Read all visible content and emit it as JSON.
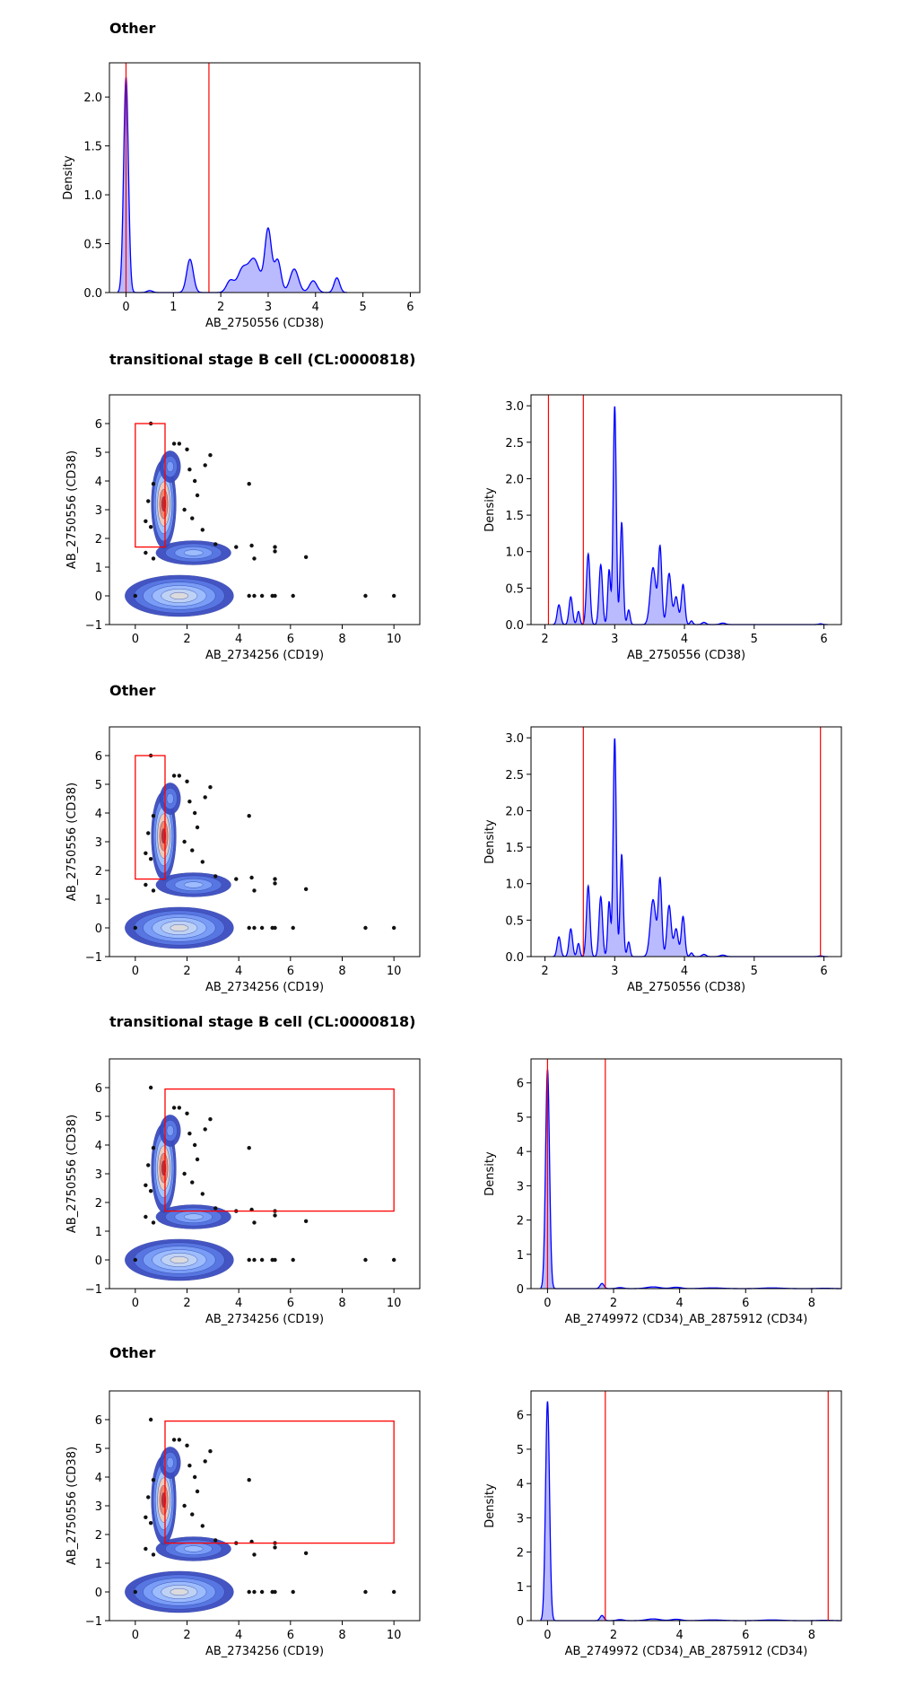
{
  "sections": [
    {
      "title": "Other"
    },
    {
      "title": "transitional stage B cell (CL:0000818)"
    },
    {
      "title": "Other"
    },
    {
      "title": "transitional stage B cell (CL:0000818)"
    },
    {
      "title": "Other"
    }
  ],
  "colors": {
    "density_line": "#0000ff",
    "density_fill": "#b3b3ff",
    "gate": "#ff0000",
    "scatter_point": "#111111"
  },
  "chart_data": [
    {
      "id": "s1-density",
      "type": "area",
      "xlabel": "AB_2750556 (CD38)",
      "ylabel": "Density",
      "xlim": [
        -0.35,
        6.2
      ],
      "ylim": [
        0,
        2.35
      ],
      "xticks": [
        0,
        1,
        2,
        3,
        4,
        5,
        6
      ],
      "yticks": [
        0.0,
        0.5,
        1.0,
        1.5,
        2.0
      ],
      "ytick_labels": [
        "0.0",
        "0.5",
        "1.0",
        "1.5",
        "2.0"
      ],
      "gates": [
        0,
        1.75
      ],
      "peaks": [
        [
          0,
          2.2,
          0.05
        ],
        [
          0.5,
          0.02,
          0.06
        ],
        [
          1.35,
          0.34,
          0.07
        ],
        [
          2.2,
          0.12,
          0.08
        ],
        [
          2.45,
          0.22,
          0.1
        ],
        [
          2.7,
          0.34,
          0.12
        ],
        [
          3.0,
          0.64,
          0.07
        ],
        [
          3.2,
          0.33,
          0.07
        ],
        [
          3.55,
          0.24,
          0.09
        ],
        [
          3.95,
          0.12,
          0.08
        ],
        [
          4.45,
          0.15,
          0.06
        ]
      ]
    },
    {
      "id": "s2-scatter",
      "type": "scatter",
      "xlabel": "AB_2734256 (CD19)",
      "ylabel": "AB_2750556 (CD38)",
      "xlim": [
        -1,
        11
      ],
      "ylim": [
        -1,
        7
      ],
      "xticks": [
        0,
        2,
        4,
        6,
        8,
        10
      ],
      "yticks": [
        -1,
        0,
        1,
        2,
        3,
        4,
        5,
        6
      ],
      "gate": {
        "x": [
          0,
          1.15
        ],
        "y": [
          1.7,
          6.0
        ]
      },
      "outliers": [
        [
          0,
          0
        ],
        [
          8.9,
          0
        ],
        [
          10,
          0
        ],
        [
          6.1,
          0
        ],
        [
          5.4,
          0
        ],
        [
          5.3,
          0
        ],
        [
          4.9,
          0
        ],
        [
          4.6,
          0
        ],
        [
          4.4,
          0
        ],
        [
          6.6,
          1.35
        ],
        [
          5.4,
          1.7
        ],
        [
          5.4,
          1.55
        ],
        [
          4.5,
          1.75
        ],
        [
          4.6,
          1.3
        ],
        [
          4.4,
          3.9
        ],
        [
          2.9,
          4.9
        ],
        [
          2.7,
          4.55
        ],
        [
          2.1,
          4.4
        ],
        [
          2.0,
          5.1
        ],
        [
          1.7,
          5.3
        ],
        [
          1.5,
          5.3
        ],
        [
          0.6,
          6.0
        ],
        [
          2.3,
          4.0
        ],
        [
          2.4,
          3.5
        ],
        [
          1.9,
          3.0
        ],
        [
          2.2,
          2.7
        ],
        [
          2.6,
          2.3
        ],
        [
          0.7,
          3.9
        ],
        [
          0.5,
          3.3
        ],
        [
          0.4,
          2.6
        ],
        [
          0.6,
          2.4
        ],
        [
          0.4,
          1.5
        ],
        [
          0.7,
          1.3
        ],
        [
          3.1,
          1.8
        ],
        [
          3.9,
          1.7
        ]
      ]
    },
    {
      "id": "s2-density",
      "type": "area",
      "xlabel": "AB_2750556 (CD38)",
      "ylabel": "Density",
      "xlim": [
        1.8,
        6.25
      ],
      "ylim": [
        0,
        3.15
      ],
      "xticks": [
        2,
        3,
        4,
        5,
        6
      ],
      "yticks": [
        0.0,
        0.5,
        1.0,
        1.5,
        2.0,
        2.5,
        3.0
      ],
      "ytick_labels": [
        "0.0",
        "0.5",
        "1.0",
        "1.5",
        "2.0",
        "2.5",
        "3.0"
      ],
      "gates": [
        2.05,
        2.55
      ],
      "peaks": [
        [
          2.2,
          0.27,
          0.025
        ],
        [
          2.37,
          0.38,
          0.025
        ],
        [
          2.48,
          0.18,
          0.02
        ],
        [
          2.62,
          0.97,
          0.025
        ],
        [
          2.8,
          0.82,
          0.025
        ],
        [
          2.92,
          0.75,
          0.02
        ],
        [
          3.0,
          3.0,
          0.022
        ],
        [
          3.1,
          1.4,
          0.022
        ],
        [
          3.2,
          0.2,
          0.02
        ],
        [
          3.55,
          0.78,
          0.04
        ],
        [
          3.65,
          1.05,
          0.025
        ],
        [
          3.78,
          0.7,
          0.03
        ],
        [
          3.88,
          0.38,
          0.03
        ],
        [
          3.98,
          0.55,
          0.025
        ],
        [
          4.1,
          0.05,
          0.02
        ],
        [
          4.28,
          0.03,
          0.03
        ],
        [
          4.55,
          0.02,
          0.04
        ],
        [
          5.95,
          0.01,
          0.03
        ]
      ]
    },
    {
      "id": "s3-scatter",
      "type": "scatter",
      "xlabel": "AB_2734256 (CD19)",
      "ylabel": "AB_2750556 (CD38)",
      "xlim": [
        -1,
        11
      ],
      "ylim": [
        -1,
        7
      ],
      "xticks": [
        0,
        2,
        4,
        6,
        8,
        10
      ],
      "yticks": [
        -1,
        0,
        1,
        2,
        3,
        4,
        5,
        6
      ],
      "gate": {
        "x": [
          0,
          1.15
        ],
        "y": [
          1.7,
          6.0
        ]
      },
      "outliers": [
        [
          0,
          0
        ],
        [
          8.9,
          0
        ],
        [
          10,
          0
        ],
        [
          6.1,
          0
        ],
        [
          5.4,
          0
        ],
        [
          5.3,
          0
        ],
        [
          4.9,
          0
        ],
        [
          4.6,
          0
        ],
        [
          4.4,
          0
        ],
        [
          6.6,
          1.35
        ],
        [
          5.4,
          1.7
        ],
        [
          5.4,
          1.55
        ],
        [
          4.5,
          1.75
        ],
        [
          4.6,
          1.3
        ],
        [
          4.4,
          3.9
        ],
        [
          2.9,
          4.9
        ],
        [
          2.7,
          4.55
        ],
        [
          2.1,
          4.4
        ],
        [
          2.0,
          5.1
        ],
        [
          1.7,
          5.3
        ],
        [
          1.5,
          5.3
        ],
        [
          0.6,
          6.0
        ],
        [
          2.3,
          4.0
        ],
        [
          2.4,
          3.5
        ],
        [
          1.9,
          3.0
        ],
        [
          2.2,
          2.7
        ],
        [
          2.6,
          2.3
        ],
        [
          0.7,
          3.9
        ],
        [
          0.5,
          3.3
        ],
        [
          0.4,
          2.6
        ],
        [
          0.6,
          2.4
        ],
        [
          0.4,
          1.5
        ],
        [
          0.7,
          1.3
        ],
        [
          3.1,
          1.8
        ],
        [
          3.9,
          1.7
        ]
      ]
    },
    {
      "id": "s3-density",
      "type": "area",
      "xlabel": "AB_2750556 (CD38)",
      "ylabel": "Density",
      "xlim": [
        1.8,
        6.25
      ],
      "ylim": [
        0,
        3.15
      ],
      "xticks": [
        2,
        3,
        4,
        5,
        6
      ],
      "yticks": [
        0.0,
        0.5,
        1.0,
        1.5,
        2.0,
        2.5,
        3.0
      ],
      "ytick_labels": [
        "0.0",
        "0.5",
        "1.0",
        "1.5",
        "2.0",
        "2.5",
        "3.0"
      ],
      "gates": [
        2.55,
        5.95
      ],
      "peaks": [
        [
          2.2,
          0.27,
          0.025
        ],
        [
          2.37,
          0.38,
          0.025
        ],
        [
          2.48,
          0.18,
          0.02
        ],
        [
          2.62,
          0.97,
          0.025
        ],
        [
          2.8,
          0.82,
          0.025
        ],
        [
          2.92,
          0.75,
          0.02
        ],
        [
          3.0,
          3.0,
          0.022
        ],
        [
          3.1,
          1.4,
          0.022
        ],
        [
          3.2,
          0.2,
          0.02
        ],
        [
          3.55,
          0.78,
          0.04
        ],
        [
          3.65,
          1.05,
          0.025
        ],
        [
          3.78,
          0.7,
          0.03
        ],
        [
          3.88,
          0.38,
          0.03
        ],
        [
          3.98,
          0.55,
          0.025
        ],
        [
          4.1,
          0.05,
          0.02
        ],
        [
          4.28,
          0.03,
          0.03
        ],
        [
          4.55,
          0.02,
          0.04
        ],
        [
          5.95,
          0.01,
          0.03
        ]
      ]
    },
    {
      "id": "s4-scatter",
      "type": "scatter",
      "xlabel": "AB_2734256 (CD19)",
      "ylabel": "AB_2750556 (CD38)",
      "xlim": [
        -1,
        11
      ],
      "ylim": [
        -1,
        7
      ],
      "xticks": [
        0,
        2,
        4,
        6,
        8,
        10
      ],
      "yticks": [
        -1,
        0,
        1,
        2,
        3,
        4,
        5,
        6
      ],
      "gate": {
        "x": [
          1.15,
          10.0
        ],
        "y": [
          1.7,
          5.95
        ]
      },
      "outliers": [
        [
          0,
          0
        ],
        [
          8.9,
          0
        ],
        [
          10,
          0
        ],
        [
          6.1,
          0
        ],
        [
          5.4,
          0
        ],
        [
          5.3,
          0
        ],
        [
          4.9,
          0
        ],
        [
          4.6,
          0
        ],
        [
          4.4,
          0
        ],
        [
          6.6,
          1.35
        ],
        [
          5.4,
          1.7
        ],
        [
          5.4,
          1.55
        ],
        [
          4.5,
          1.75
        ],
        [
          4.6,
          1.3
        ],
        [
          4.4,
          3.9
        ],
        [
          2.9,
          4.9
        ],
        [
          2.7,
          4.55
        ],
        [
          2.1,
          4.4
        ],
        [
          2.0,
          5.1
        ],
        [
          1.7,
          5.3
        ],
        [
          1.5,
          5.3
        ],
        [
          0.6,
          6.0
        ],
        [
          2.3,
          4.0
        ],
        [
          2.4,
          3.5
        ],
        [
          1.9,
          3.0
        ],
        [
          2.2,
          2.7
        ],
        [
          2.6,
          2.3
        ],
        [
          0.7,
          3.9
        ],
        [
          0.5,
          3.3
        ],
        [
          0.4,
          2.6
        ],
        [
          0.6,
          2.4
        ],
        [
          0.4,
          1.5
        ],
        [
          0.7,
          1.3
        ],
        [
          3.1,
          1.8
        ],
        [
          3.9,
          1.7
        ]
      ]
    },
    {
      "id": "s4-density",
      "type": "area",
      "xlabel": "AB_2749972 (CD34)_AB_2875912 (CD34)",
      "ylabel": "Density",
      "xlim": [
        -0.5,
        8.9
      ],
      "ylim": [
        0,
        6.7
      ],
      "xticks": [
        0,
        2,
        4,
        6,
        8
      ],
      "yticks": [
        0,
        1,
        2,
        3,
        4,
        5,
        6
      ],
      "ytick_labels": [
        "0",
        "1",
        "2",
        "3",
        "4",
        "5",
        "6"
      ],
      "gates": [
        0,
        1.75
      ],
      "peaks": [
        [
          0,
          6.4,
          0.06
        ],
        [
          1.65,
          0.15,
          0.06
        ],
        [
          2.2,
          0.03,
          0.1
        ],
        [
          3.2,
          0.05,
          0.2
        ],
        [
          3.9,
          0.04,
          0.15
        ],
        [
          5.0,
          0.02,
          0.3
        ],
        [
          6.8,
          0.02,
          0.3
        ],
        [
          8.4,
          0.01,
          0.2
        ]
      ]
    },
    {
      "id": "s5-scatter",
      "type": "scatter",
      "xlabel": "AB_2734256 (CD19)",
      "ylabel": "AB_2750556 (CD38)",
      "xlim": [
        -1,
        11
      ],
      "ylim": [
        -1,
        7
      ],
      "xticks": [
        0,
        2,
        4,
        6,
        8,
        10
      ],
      "yticks": [
        -1,
        0,
        1,
        2,
        3,
        4,
        5,
        6
      ],
      "gate": {
        "x": [
          1.15,
          10.0
        ],
        "y": [
          1.7,
          5.95
        ]
      },
      "outliers": [
        [
          0,
          0
        ],
        [
          8.9,
          0
        ],
        [
          10,
          0
        ],
        [
          6.1,
          0
        ],
        [
          5.4,
          0
        ],
        [
          5.3,
          0
        ],
        [
          4.9,
          0
        ],
        [
          4.6,
          0
        ],
        [
          4.4,
          0
        ],
        [
          6.6,
          1.35
        ],
        [
          5.4,
          1.7
        ],
        [
          5.4,
          1.55
        ],
        [
          4.5,
          1.75
        ],
        [
          4.6,
          1.3
        ],
        [
          4.4,
          3.9
        ],
        [
          2.9,
          4.9
        ],
        [
          2.7,
          4.55
        ],
        [
          2.1,
          4.4
        ],
        [
          2.0,
          5.1
        ],
        [
          1.7,
          5.3
        ],
        [
          1.5,
          5.3
        ],
        [
          0.6,
          6.0
        ],
        [
          2.3,
          4.0
        ],
        [
          2.4,
          3.5
        ],
        [
          1.9,
          3.0
        ],
        [
          2.2,
          2.7
        ],
        [
          2.6,
          2.3
        ],
        [
          0.7,
          3.9
        ],
        [
          0.5,
          3.3
        ],
        [
          0.4,
          2.6
        ],
        [
          0.6,
          2.4
        ],
        [
          0.4,
          1.5
        ],
        [
          0.7,
          1.3
        ],
        [
          3.1,
          1.8
        ],
        [
          3.9,
          1.7
        ]
      ]
    },
    {
      "id": "s5-density",
      "type": "area",
      "xlabel": "AB_2749972 (CD34)_AB_2875912 (CD34)",
      "ylabel": "Density",
      "xlim": [
        -0.5,
        8.9
      ],
      "ylim": [
        0,
        6.7
      ],
      "xticks": [
        0,
        2,
        4,
        6,
        8
      ],
      "yticks": [
        0,
        1,
        2,
        3,
        4,
        5,
        6
      ],
      "ytick_labels": [
        "0",
        "1",
        "2",
        "3",
        "4",
        "5",
        "6"
      ],
      "gates": [
        1.75,
        8.5
      ],
      "peaks": [
        [
          0,
          6.4,
          0.06
        ],
        [
          1.65,
          0.15,
          0.06
        ],
        [
          2.2,
          0.03,
          0.1
        ],
        [
          3.2,
          0.05,
          0.2
        ],
        [
          3.9,
          0.04,
          0.15
        ],
        [
          5.0,
          0.02,
          0.3
        ],
        [
          6.8,
          0.02,
          0.3
        ],
        [
          8.4,
          0.01,
          0.2
        ]
      ]
    }
  ]
}
